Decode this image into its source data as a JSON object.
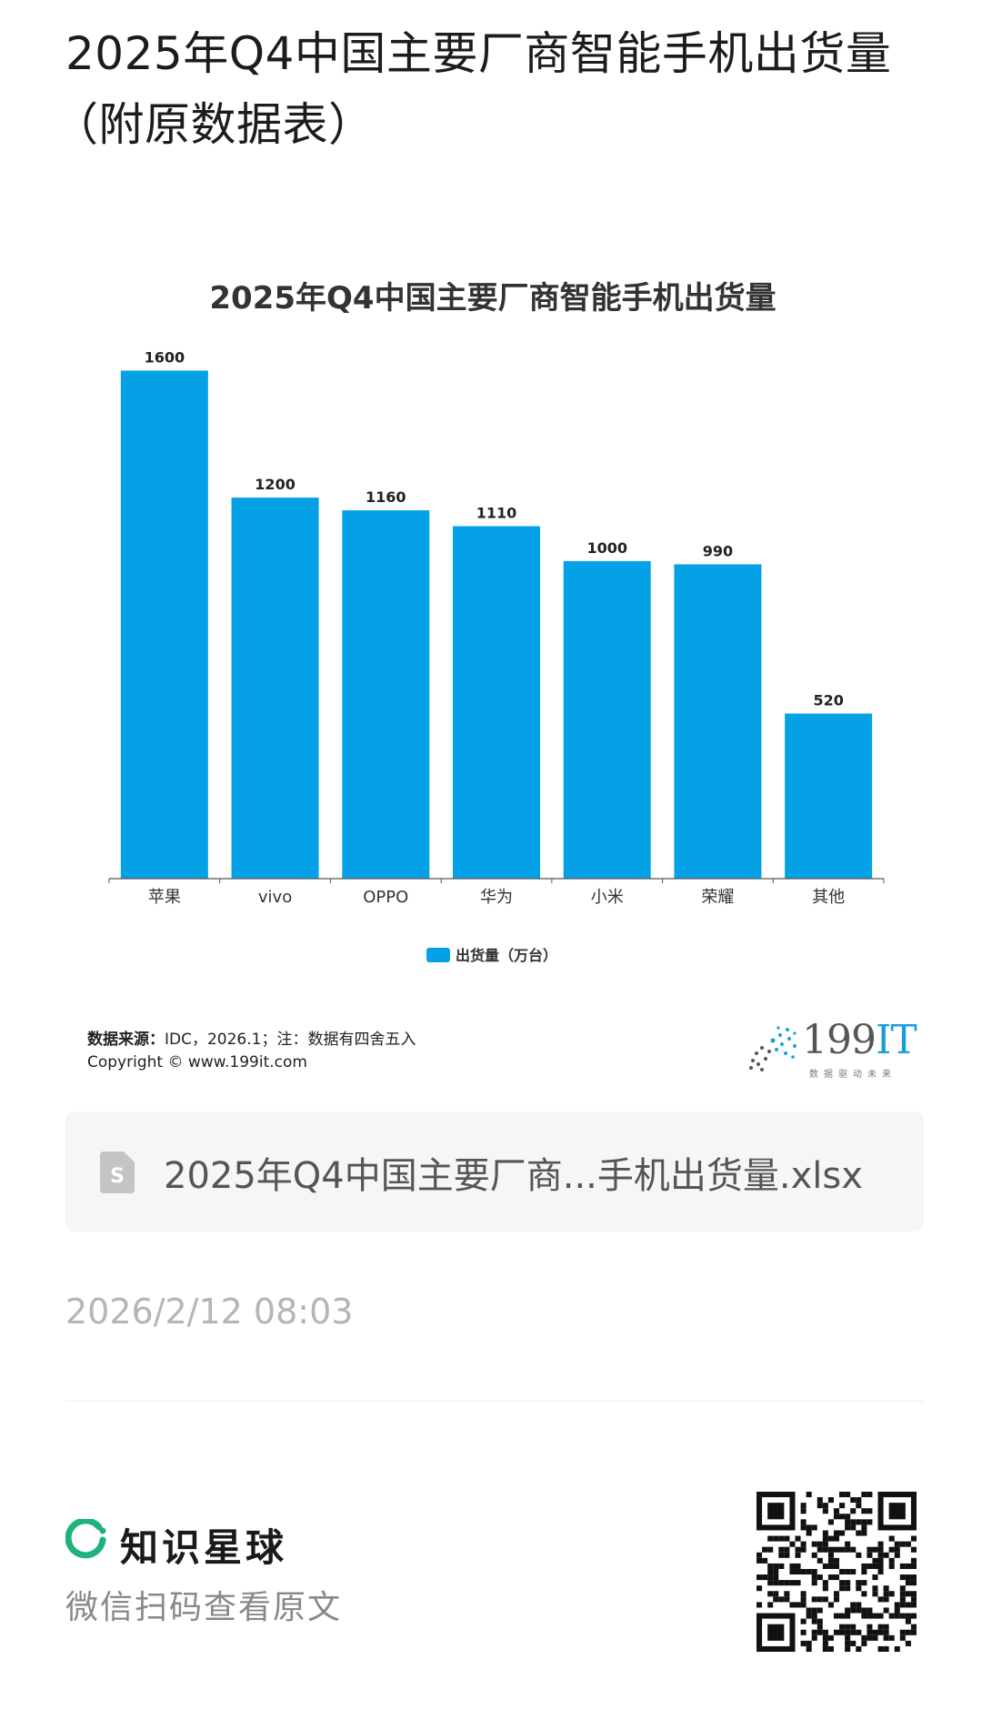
{
  "page": {
    "title_line1": "2025年Q4中国主要厂商智能手机出货量",
    "title_line2": "（附原数据表）"
  },
  "chart_data": {
    "type": "bar",
    "title": "2025年Q4中国主要厂商智能手机出货量",
    "categories": [
      "苹果",
      "vivo",
      "OPPO",
      "华为",
      "小米",
      "荣耀",
      "其他"
    ],
    "series": [
      {
        "name": "出货量（万台）",
        "values": [
          1600,
          1200,
          1160,
          1110,
          1000,
          990,
          520
        ]
      }
    ],
    "ylim": [
      0,
      1650
    ],
    "grid": false,
    "legend": "bottom",
    "bar_color": "#05a1e6"
  },
  "source": {
    "label": "数据来源：",
    "text": "IDC，2026.1；注：数据有四舍五入",
    "copyright": "Copyright ©  www.199it.com"
  },
  "brand": {
    "name_num": "199",
    "name_it": "IT",
    "tagline": "数据驱动未来"
  },
  "attachment": {
    "filename": "2025年Q4中国主要厂商...手机出货量.xlsx",
    "icon": "spreadsheet-file-icon"
  },
  "timestamp": "2026/2/12 08:03",
  "footer": {
    "app_name": "知识星球",
    "scan_hint": "微信扫码查看原文",
    "qr_icon": "qr-code"
  },
  "colors": {
    "accent_green": "#1fb27b",
    "bar_blue": "#05a1e6"
  }
}
